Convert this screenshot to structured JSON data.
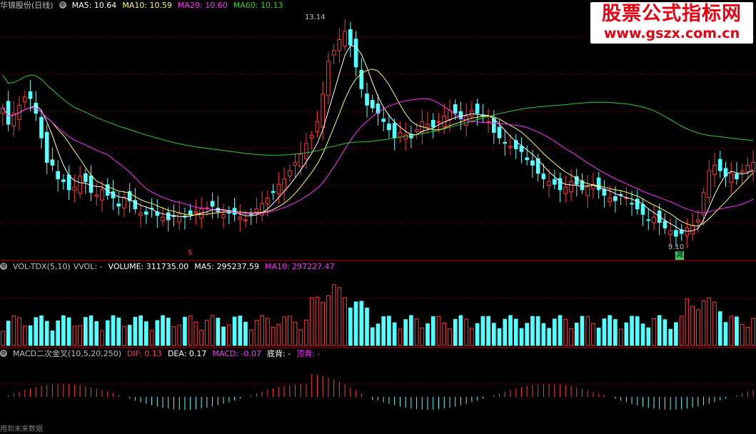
{
  "main_panel": {
    "stock_label": "华锦股份(日线)",
    "icon": "gear-icon",
    "ma5": "MA5: 10.64",
    "ma10": "MA10: 10.59",
    "ma20": "MA20: 10.60",
    "ma60": "MA60: 10.13",
    "high_marker": "13.14",
    "low_marker": "9.10",
    "signal_s": "S",
    "signal_jian": "减"
  },
  "volume_panel": {
    "title": "VOL-TDX(5,10)",
    "vvol": "VVOL: -",
    "volume": "VOLUME: 311735.00",
    "ma5": "MA5: 295237.59",
    "ma10": "MA10: 297227.47"
  },
  "macd_panel": {
    "title": "MACD二次金叉(10,5,20,250)",
    "dif": "DIF: 0.13",
    "dea": "DEA: 0.17",
    "macd": "MACD: -0.07",
    "dibei": "底背: -",
    "dingbei": "顶背: -"
  },
  "watermark": {
    "title": "股票公式指标网",
    "url": "www.gszx.com.cn"
  },
  "footer_note": "用到未来数据",
  "colors": {
    "background": "#000000",
    "up": "#ff3c3c",
    "down": "#54ffff",
    "ma5": "#ffffff",
    "ma10": "#ffff66",
    "ma20": "#ff33ff",
    "ma60": "#33cc33",
    "grid": "#800000",
    "separator": "#c00000",
    "watermark_red": "#e60012"
  },
  "chart_data": {
    "type": "candlestick",
    "price_range": [
      9.1,
      13.14
    ],
    "price_high": 13.14,
    "price_low": 9.1,
    "closes": [
      11.55,
      11.25,
      11.45,
      11.6,
      11.75,
      11.72,
      11.45,
      11.0,
      10.55,
      10.5,
      10.25,
      10.2,
      10.05,
      10.1,
      10.3,
      10.2,
      10.0,
      9.95,
      10.05,
      9.95,
      9.9,
      9.75,
      9.9,
      9.85,
      9.7,
      9.62,
      9.6,
      9.7,
      9.58,
      9.55,
      9.5,
      9.56,
      9.62,
      9.55,
      9.6,
      9.65,
      9.7,
      9.72,
      9.75,
      9.65,
      9.6,
      9.62,
      9.6,
      9.55,
      9.5,
      9.6,
      9.7,
      9.8,
      9.9,
      10.0,
      10.15,
      10.25,
      10.4,
      10.55,
      10.7,
      10.9,
      11.05,
      11.3,
      11.8,
      12.4,
      12.6,
      12.8,
      12.95,
      12.7,
      12.3,
      11.9,
      11.6,
      11.55,
      11.45,
      11.3,
      11.15,
      11.0,
      11.1,
      11.05,
      11.0,
      11.15,
      11.3,
      11.25,
      11.2,
      11.3,
      11.4,
      11.5,
      11.45,
      11.35,
      11.4,
      11.5,
      11.45,
      11.4,
      11.3,
      11.1,
      11.0,
      10.9,
      10.85,
      10.8,
      10.75,
      10.6,
      10.5,
      10.35,
      10.25,
      10.2,
      10.15,
      10.05,
      10.1,
      10.2,
      10.15,
      10.05,
      10.1,
      10.15,
      10.05,
      9.95,
      9.9,
      9.85,
      9.95,
      9.9,
      9.8,
      9.7,
      9.6,
      9.5,
      9.55,
      9.45,
      9.35,
      9.3,
      9.2,
      9.25,
      9.35,
      9.4,
      9.5,
      10.0,
      10.4,
      10.5,
      10.4,
      10.3,
      10.35,
      10.25,
      10.4,
      10.5,
      10.55
    ],
    "ma_lines": [
      "MA5",
      "MA10",
      "MA20",
      "MA60"
    ]
  }
}
